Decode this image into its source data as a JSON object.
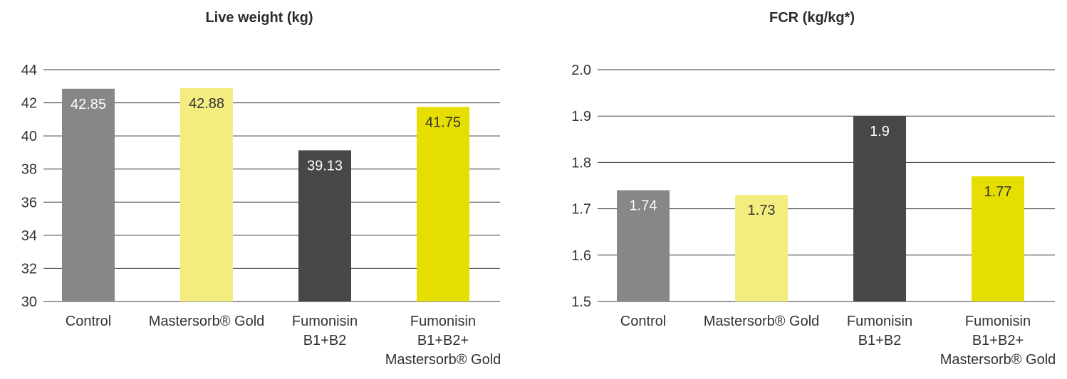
{
  "chart_data": [
    {
      "type": "bar",
      "title": "Live weight (kg)",
      "categories": [
        [
          "Control"
        ],
        [
          "Mastersorb® Gold"
        ],
        [
          "Fumonisin",
          "B1+B2"
        ],
        [
          "Fumonisin",
          "B1+B2+",
          "Mastersorb® Gold"
        ]
      ],
      "values": [
        42.85,
        42.88,
        39.13,
        41.75
      ],
      "value_labels": [
        "42.85",
        "42.88",
        "39.13",
        "41.75"
      ],
      "colors": [
        "#878787",
        "#f3ec7f",
        "#474745",
        "#e6de00"
      ],
      "label_colors": [
        "#ffffff",
        "#333333",
        "#ffffff",
        "#333333"
      ],
      "ylim": [
        30,
        44
      ],
      "yticks": [
        "30",
        "32",
        "34",
        "36",
        "38",
        "40",
        "42",
        "44"
      ],
      "grid": true
    },
    {
      "type": "bar",
      "title": "FCR (kg/kg*)",
      "categories": [
        [
          "Control"
        ],
        [
          "Mastersorb® Gold"
        ],
        [
          "Fumonisin",
          "B1+B2"
        ],
        [
          "Fumonisin",
          "B1+B2+",
          "Mastersorb® Gold"
        ]
      ],
      "values": [
        1.74,
        1.73,
        1.9,
        1.77
      ],
      "value_labels": [
        "1.74",
        "1.73",
        "1.9",
        "1.77"
      ],
      "colors": [
        "#878787",
        "#f3ec7f",
        "#474745",
        "#e6de00"
      ],
      "label_colors": [
        "#ffffff",
        "#333333",
        "#ffffff",
        "#333333"
      ],
      "ylim": [
        1.5,
        2.0
      ],
      "yticks": [
        "1.5",
        "1.6",
        "1.7",
        "1.8",
        "1.9",
        "2.0"
      ],
      "grid": true
    }
  ]
}
